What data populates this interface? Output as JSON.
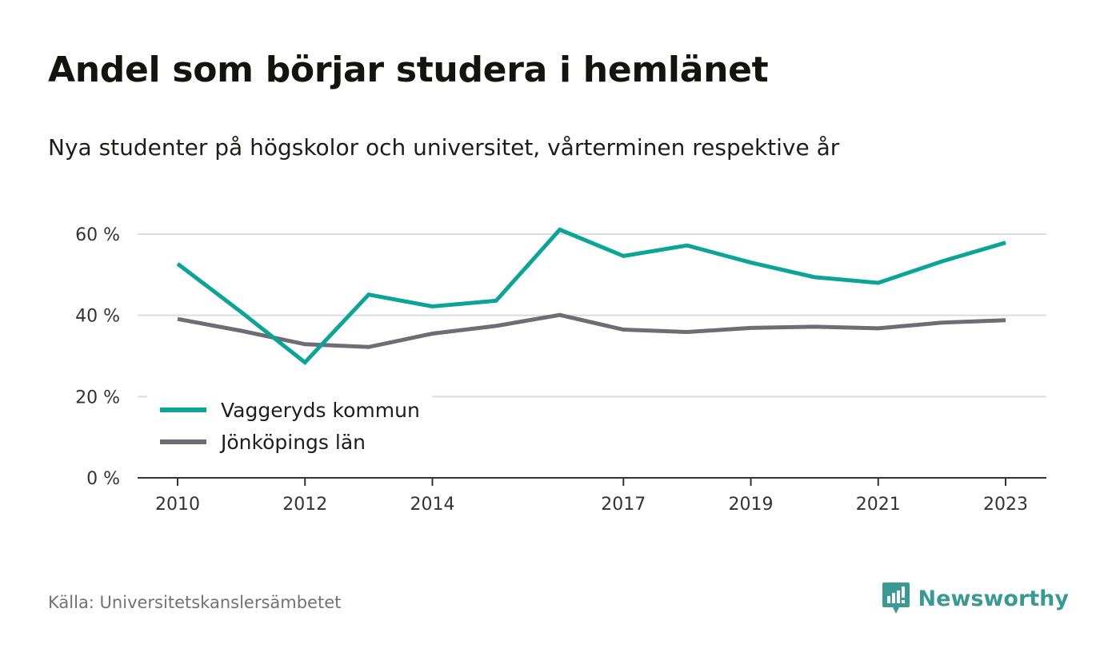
{
  "title": "Andel som börjar studera i hemlänet",
  "subtitle": "Nya studenter på högskolor och universitet, vårterminen respektive år",
  "source": "Källa: Universitetskanslersämbetet",
  "brand": {
    "name": "Newsworthy",
    "color": "#3a9a93",
    "icon": "newsworthy-logo-icon"
  },
  "chart_data": {
    "type": "line",
    "title": "Andel som börjar studera i hemlänet",
    "subtitle": "Nya studenter på högskolor och universitet, vårterminen respektive år",
    "x": [
      2010,
      2011,
      2012,
      2013,
      2014,
      2015,
      2016,
      2017,
      2018,
      2019,
      2020,
      2021,
      2022,
      2023
    ],
    "x_tick_labels": [
      "2010",
      "2012",
      "2014",
      "2017",
      "2019",
      "2021",
      "2023"
    ],
    "ylim": [
      0,
      60
    ],
    "y_ticks": [
      0,
      20,
      40,
      60
    ],
    "y_tick_labels": [
      "0 %",
      "20 %",
      "40 %",
      "60 %"
    ],
    "grid": true,
    "legend_position": "bottom-left",
    "series": [
      {
        "name": "Vaggeryds kommun",
        "color": "#0ca496",
        "values": [
          52.7,
          40.8,
          28.4,
          45.1,
          42.2,
          43.6,
          61.1,
          54.6,
          57.2,
          53.0,
          49.4,
          48.0,
          53.3,
          57.9
        ]
      },
      {
        "name": "Jönköpings län",
        "color": "#6e6d74",
        "values": [
          39.1,
          36.2,
          32.9,
          32.2,
          35.5,
          37.4,
          40.1,
          36.5,
          35.9,
          36.9,
          37.2,
          36.8,
          38.2,
          38.8
        ]
      }
    ]
  }
}
